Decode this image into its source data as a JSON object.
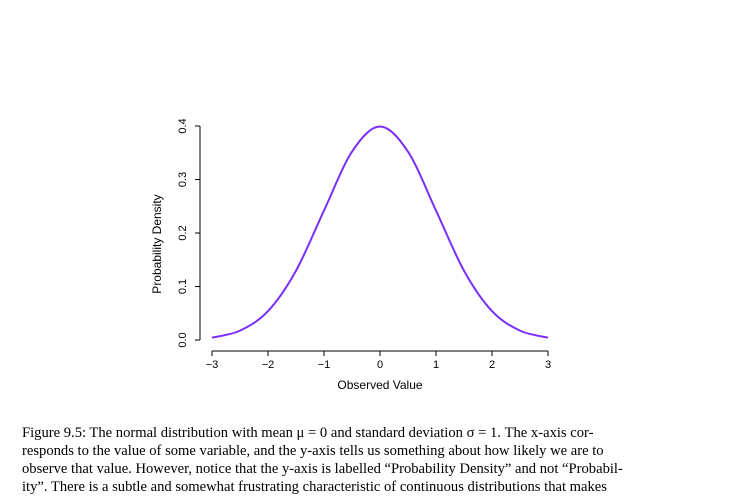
{
  "chart_data": {
    "type": "line",
    "xlabel": "Observed Value",
    "ylabel": "Probability Density",
    "xlim": [
      -3,
      3
    ],
    "ylim": [
      0,
      0.4
    ],
    "x_ticks": [
      "−3",
      "−2",
      "−1",
      "0",
      "1",
      "2",
      "3"
    ],
    "y_ticks": [
      "0.0",
      "0.1",
      "0.2",
      "0.3",
      "0.4"
    ],
    "series": [
      {
        "color": "#7b2ff7",
        "x": [
          -3,
          -2.5,
          -2,
          -1.5,
          -1,
          -0.5,
          0,
          0.5,
          1,
          1.5,
          2,
          2.5,
          3
        ],
        "y": [
          0.0044,
          0.0175,
          0.054,
          0.1295,
          0.242,
          0.352,
          0.399,
          0.352,
          0.242,
          0.1295,
          0.054,
          0.0175,
          0.0044
        ]
      }
    ],
    "grid": false,
    "legend": "none"
  },
  "caption": {
    "lines": [
      "Figure 9.5: The normal distribution with mean μ = 0 and standard deviation σ = 1. The x-axis cor-",
      "responds to the value of some variable, and the y-axis tells us something about how likely we are to",
      "observe that value. However, notice that the y-axis is labelled “Probability Density” and not “Probabil-",
      "ity”. There is a subtle and somewhat frustrating characteristic of continuous distributions that makes"
    ]
  }
}
